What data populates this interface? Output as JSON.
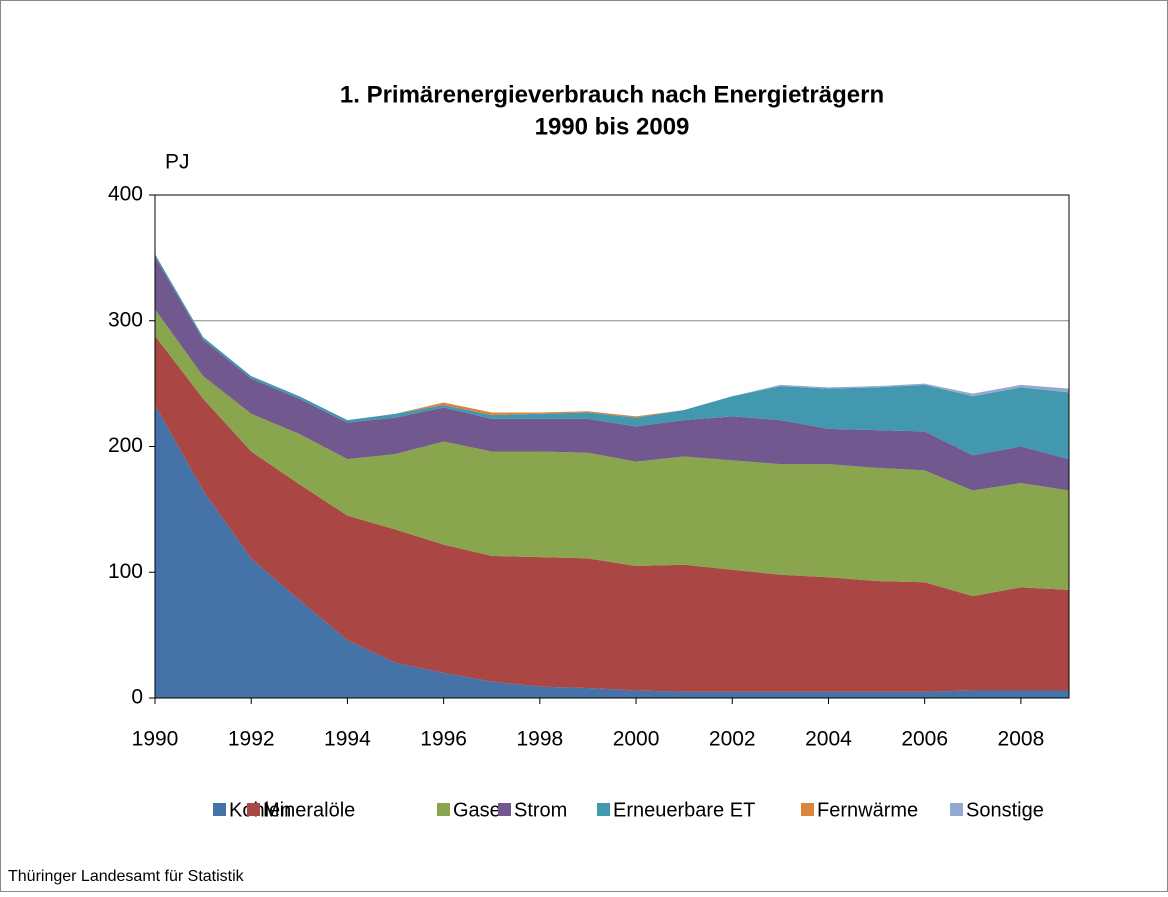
{
  "chart_data": {
    "type": "stacked-area",
    "title": "1. Primärenergieverbrauch nach Energieträgern",
    "subtitle": "1990 bis 2009",
    "y_label": "PJ",
    "source": "Thüringer Landesamt für Statistik",
    "x": [
      1990,
      1991,
      1992,
      1993,
      1994,
      1995,
      1996,
      1997,
      1998,
      1999,
      2000,
      2001,
      2002,
      2003,
      2004,
      2005,
      2006,
      2007,
      2008,
      2009
    ],
    "xlim": [
      1990,
      2009
    ],
    "xticks": [
      1990,
      1992,
      1994,
      1996,
      1998,
      2000,
      2002,
      2004,
      2006,
      2008
    ],
    "ylim": [
      0,
      400
    ],
    "yticks": [
      0,
      100,
      200,
      300,
      400
    ],
    "grid": true,
    "legend": "bottom",
    "series": [
      {
        "name": "Kohlen",
        "color": "#4572a7",
        "values": [
          233,
          165,
          111,
          78,
          46,
          28,
          20,
          13,
          9,
          8,
          6,
          5,
          5,
          5,
          5,
          5,
          5,
          6,
          6,
          6
        ]
      },
      {
        "name": "Mineralöle",
        "color": "#aa4643",
        "values": [
          55,
          73,
          85,
          92,
          99,
          106,
          102,
          100,
          103,
          103,
          99,
          101,
          97,
          93,
          91,
          88,
          87,
          75,
          82,
          80
        ]
      },
      {
        "name": "Gase",
        "color": "#89a54e",
        "values": [
          21,
          18,
          30,
          40,
          45,
          60,
          82,
          83,
          84,
          84,
          83,
          86,
          87,
          88,
          90,
          90,
          89,
          84,
          83,
          79
        ]
      },
      {
        "name": "Strom",
        "color": "#71588f",
        "values": [
          42,
          29,
          28,
          28,
          29,
          29,
          27,
          26,
          26,
          27,
          28,
          29,
          35,
          35,
          28,
          30,
          31,
          28,
          29,
          25
        ]
      },
      {
        "name": "Erneuerbare ET",
        "color": "#4198af",
        "values": [
          2,
          2,
          2,
          2,
          2,
          3,
          2,
          3,
          4,
          5,
          7,
          8,
          16,
          27,
          32,
          34,
          37,
          47,
          47,
          53
        ]
      },
      {
        "name": "Fernwärme",
        "color": "#db843d",
        "values": [
          0,
          0,
          0,
          0,
          0,
          0,
          2,
          2,
          1,
          1,
          1,
          0,
          0,
          0,
          0,
          0,
          0,
          0,
          0,
          0
        ]
      },
      {
        "name": "Sonstige",
        "color": "#93a9cf",
        "values": [
          0,
          0,
          0,
          0,
          0,
          0,
          0,
          0,
          0,
          0,
          0,
          0,
          0,
          1,
          1,
          1,
          1,
          2,
          2,
          3
        ]
      }
    ]
  }
}
